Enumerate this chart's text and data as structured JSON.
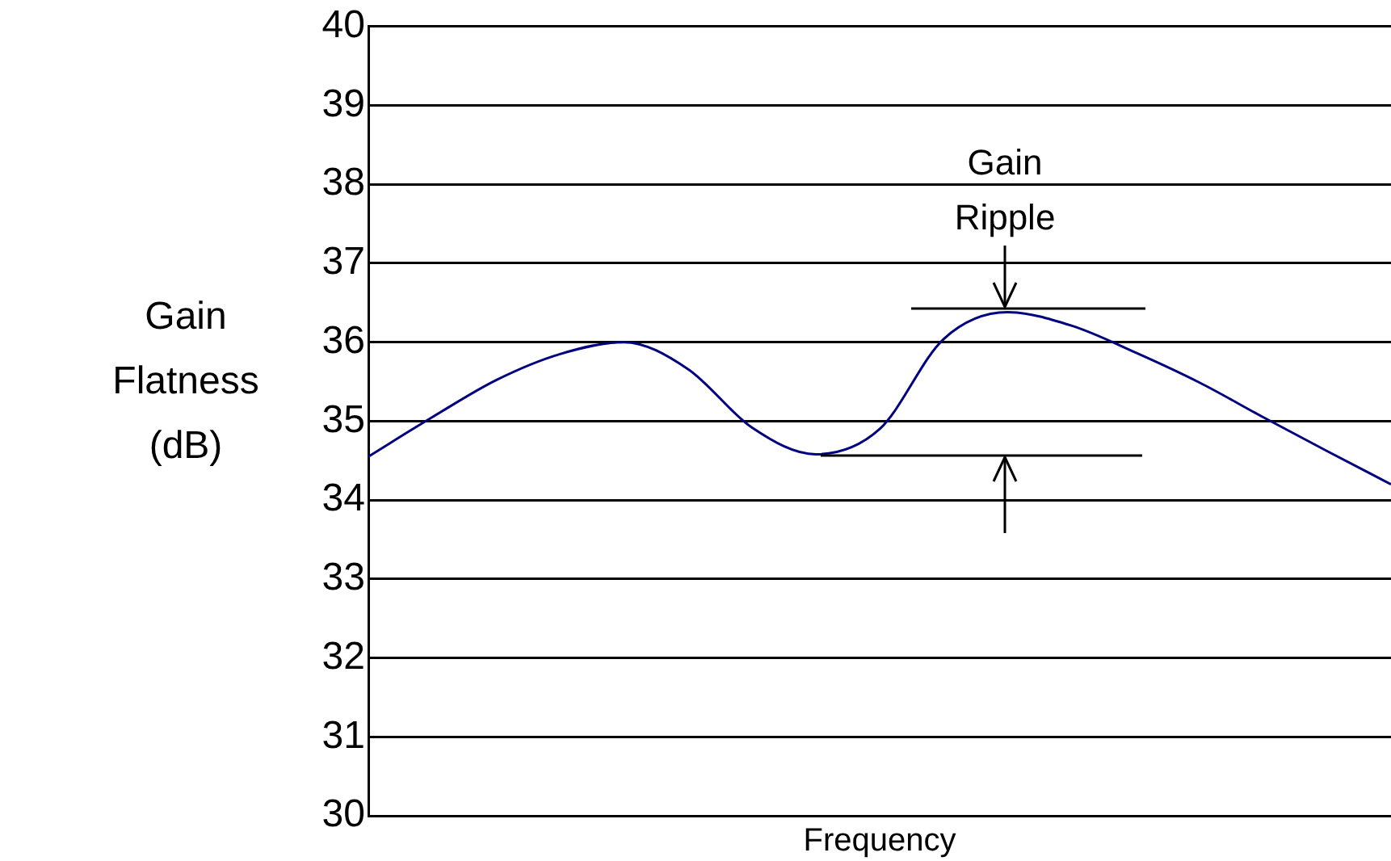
{
  "chart_data": {
    "type": "line",
    "xlabel": "Frequency",
    "ylabel": "Gain Flatness (dB)",
    "categories": [
      null,
      null,
      null,
      null,
      null,
      null,
      null,
      null,
      null,
      null,
      null,
      null,
      null,
      null,
      null,
      null,
      null
    ],
    "series": [
      {
        "color": "#000080",
        "values": [
          34.55,
          35.05,
          35.52,
          35.85,
          36.0,
          35.66,
          34.92,
          34.58,
          34.9,
          36.04,
          36.38,
          36.21,
          35.87,
          35.49,
          35.05,
          34.62,
          34.2
        ]
      }
    ],
    "ylim": [
      30,
      40
    ],
    "yticks": [
      30,
      31,
      32,
      33,
      34,
      35,
      36,
      37,
      38,
      39,
      40
    ],
    "grid": "y",
    "legend": false,
    "tick_labels": "y",
    "marker": "none",
    "line_style": "solid",
    "annotations": [
      "Gain Ripple"
    ]
  }
}
